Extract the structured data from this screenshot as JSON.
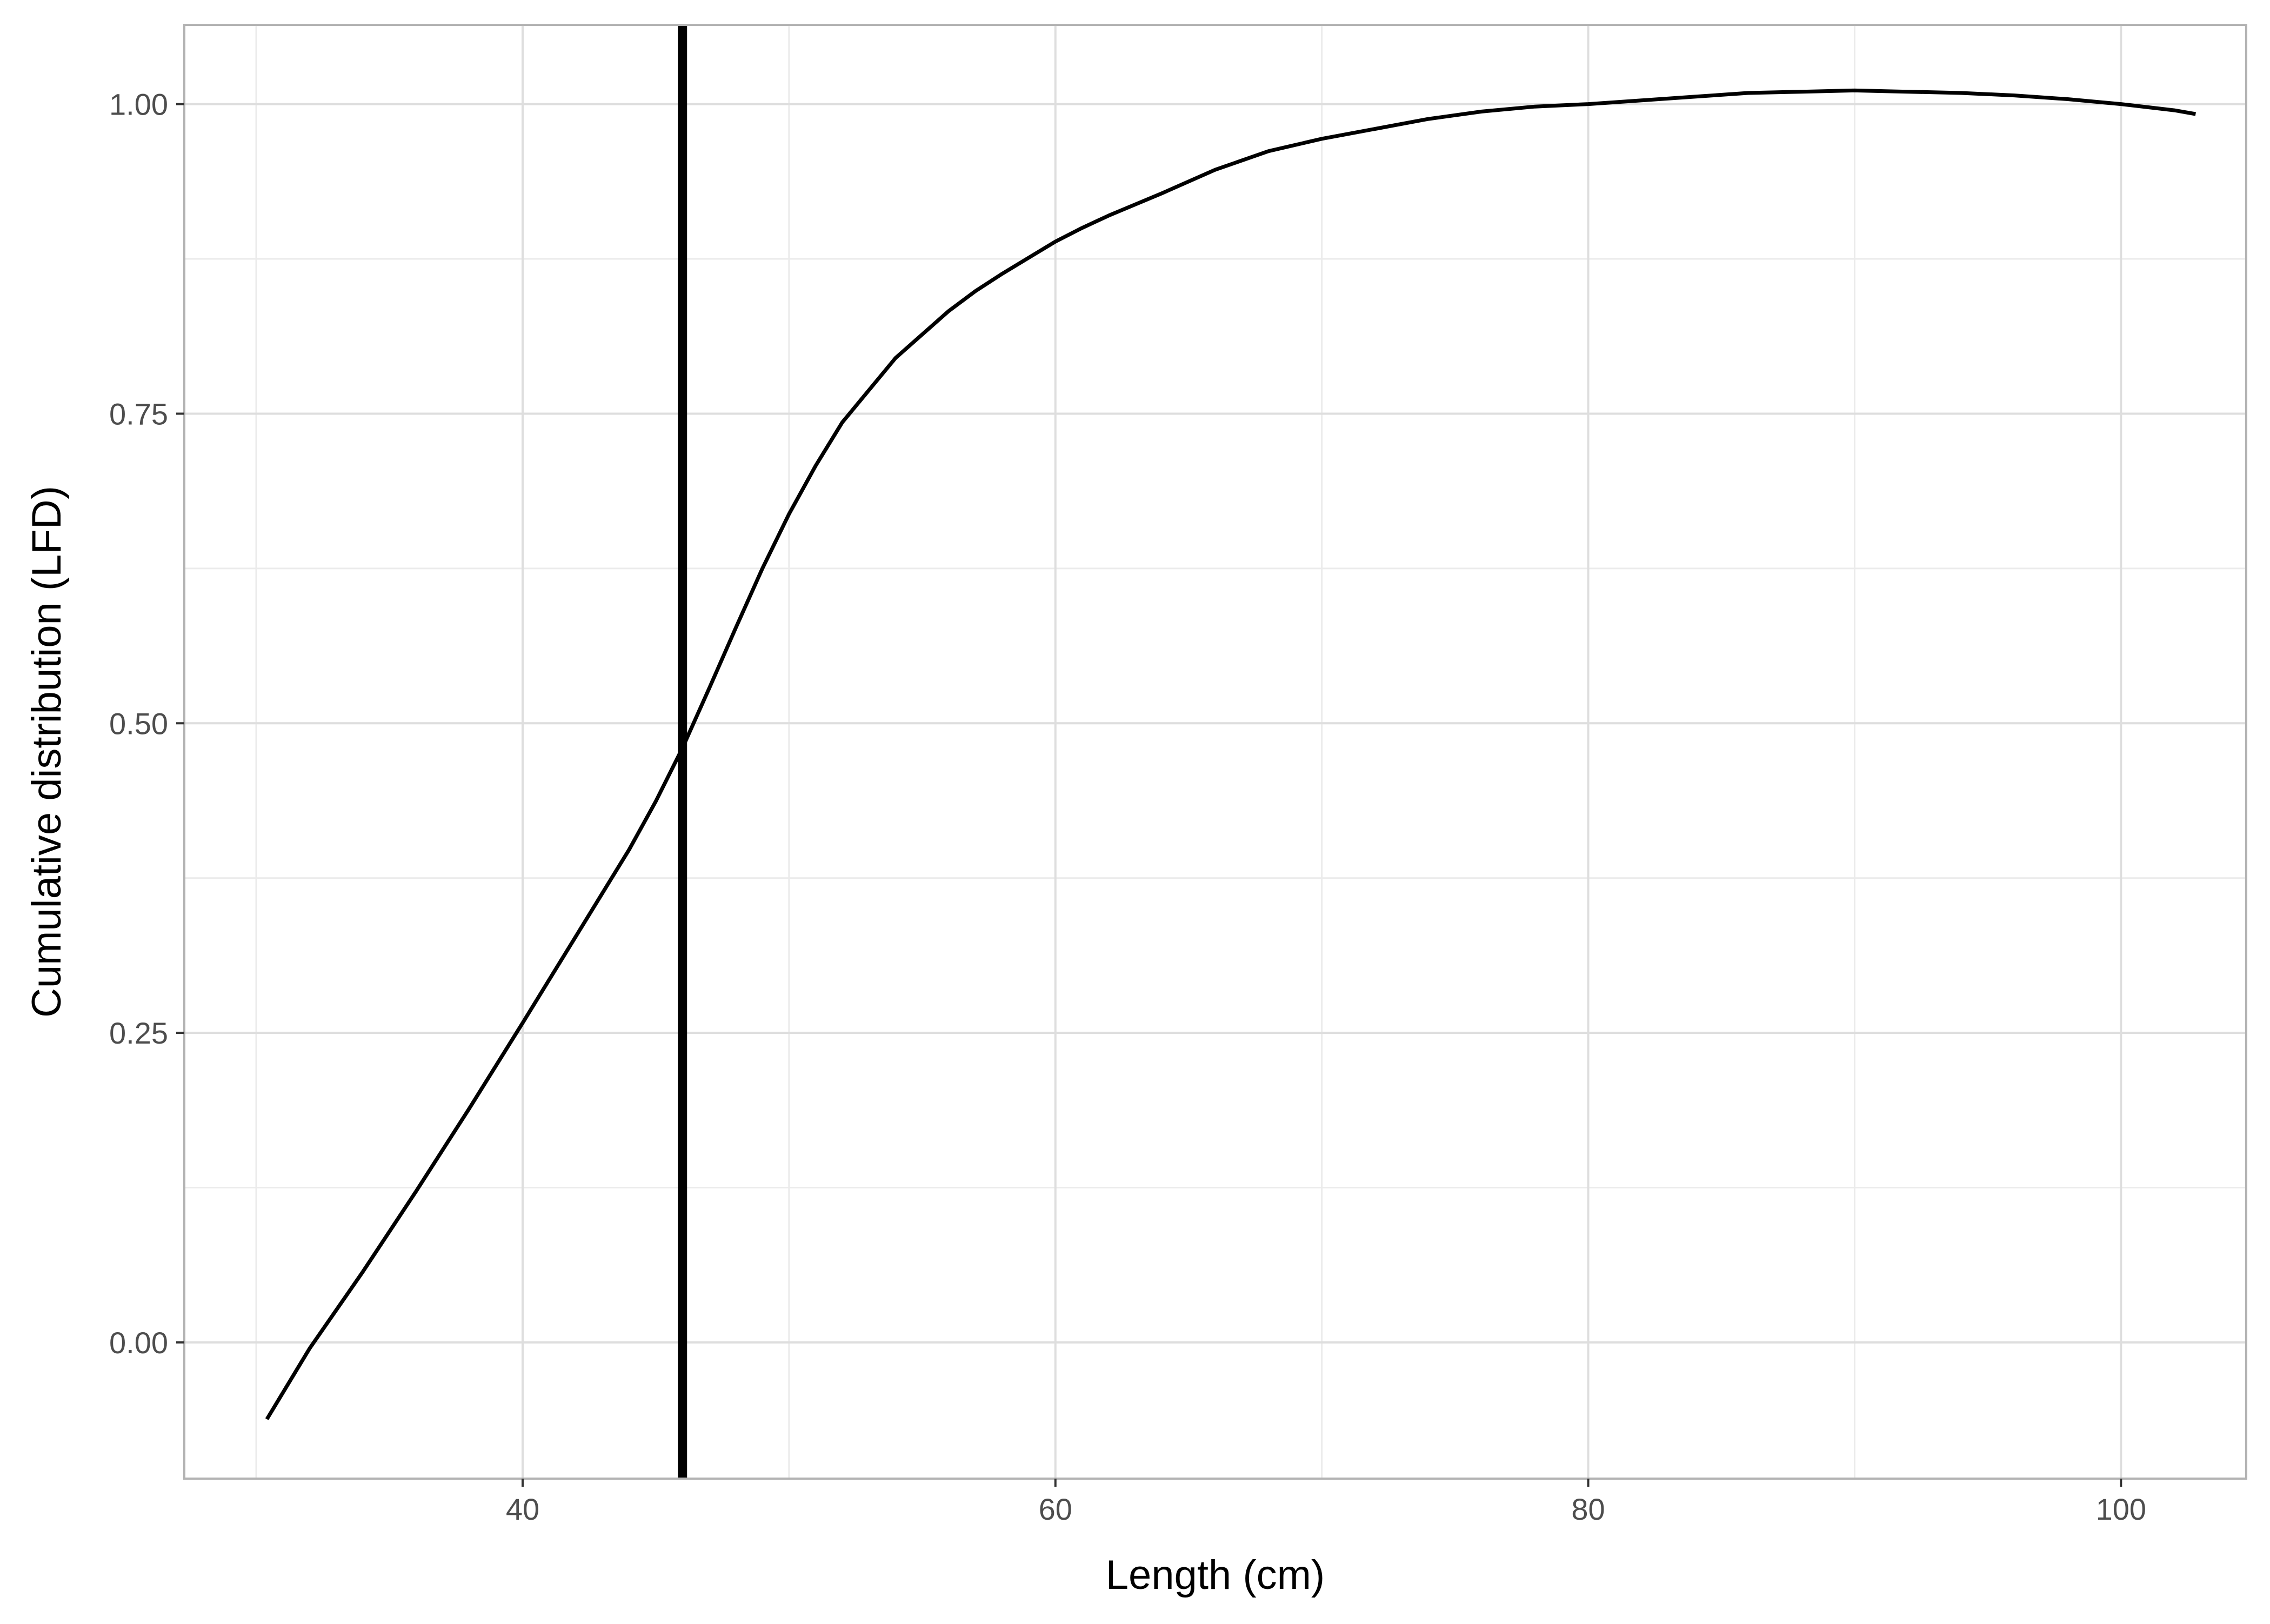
{
  "chart_data": {
    "type": "line",
    "title": "",
    "xlabel": "Length (cm)",
    "ylabel": "Cumulative distribution (LFD)",
    "xlim": [
      27.3,
      104.7
    ],
    "ylim": [
      -0.11,
      1.064
    ],
    "x_ticks": [
      40,
      60,
      80,
      100
    ],
    "x_tick_labels": [
      "40",
      "60",
      "80",
      "100"
    ],
    "x_minor_ticks": [
      30,
      50,
      70,
      90
    ],
    "y_ticks": [
      0,
      0.25,
      0.5,
      0.75,
      1.0
    ],
    "y_tick_labels": [
      "0.00",
      "0.25",
      "0.50",
      "0.75",
      "1.00"
    ],
    "y_minor_ticks": [
      0.125,
      0.375,
      0.625,
      0.875
    ],
    "grid": true,
    "legend": "none",
    "series": [
      {
        "x": [
          30.4,
          32.0,
          34.0,
          36.0,
          38.0,
          40.0,
          42.0,
          44.0,
          45.0,
          46.0,
          47.0,
          48.0,
          49.0,
          50.0,
          51.0,
          52.0,
          54.0,
          56.0,
          57.0,
          58.0,
          59.0,
          60.0,
          61.0,
          62.0,
          64.0,
          66.0,
          68.0,
          70.0,
          72.0,
          74.0,
          76.0,
          78.0,
          80.0,
          82.0,
          84.0,
          86.0,
          88.0,
          90.0,
          92.0,
          94.0,
          96.0,
          98.0,
          100.0,
          102.0,
          102.8
        ],
        "y": [
          -0.062,
          -0.005,
          0.057,
          0.122,
          0.189,
          0.258,
          0.328,
          0.398,
          0.437,
          0.48,
          0.528,
          0.577,
          0.625,
          0.669,
          0.708,
          0.743,
          0.795,
          0.833,
          0.849,
          0.863,
          0.876,
          0.889,
          0.9,
          0.91,
          0.928,
          0.947,
          0.962,
          0.972,
          0.98,
          0.988,
          0.994,
          0.998,
          1.0,
          1.003,
          1.006,
          1.009,
          1.01,
          1.011,
          1.01,
          1.009,
          1.007,
          1.004,
          1.0,
          0.995,
          0.992
        ],
        "color": "#000000"
      }
    ],
    "annotations": [
      {
        "type": "vline",
        "x": 46.0,
        "color": "#000000"
      }
    ]
  }
}
